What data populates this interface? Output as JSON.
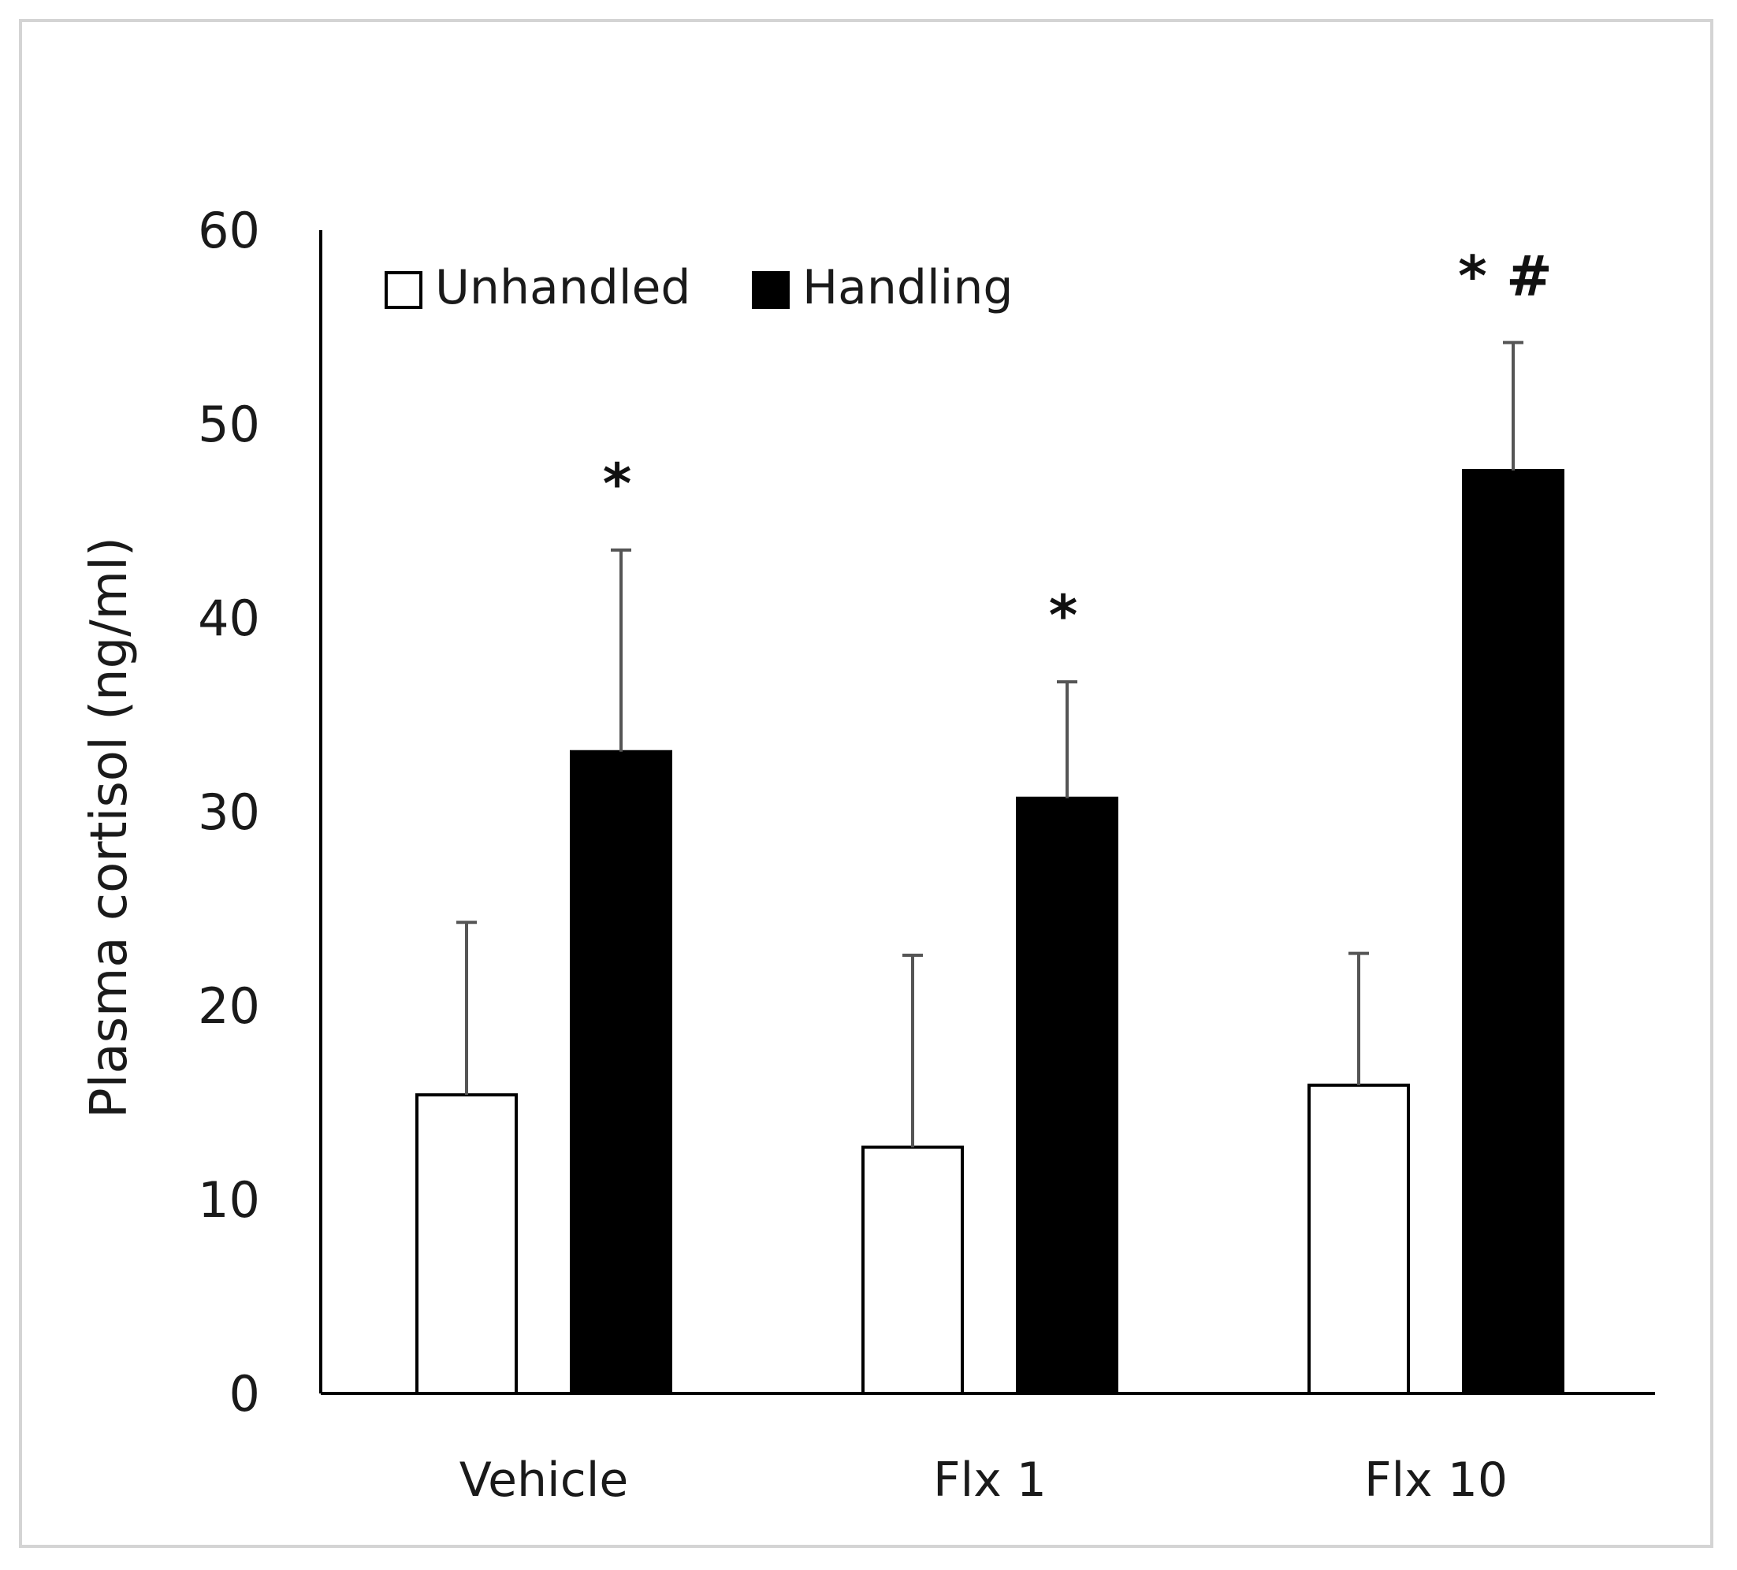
{
  "chart_data": {
    "type": "bar",
    "title": "",
    "xlabel": "",
    "ylabel": "Plasma cortisol (ng/ml)",
    "ylim": [
      0,
      60
    ],
    "yticks": [
      "0",
      "10",
      "20",
      "30",
      "40",
      "50",
      "60"
    ],
    "categories": [
      "Vehicle",
      "Flx 1",
      "Flx 10"
    ],
    "series": [
      {
        "name": "Unhandled",
        "values": [
          15.4,
          12.7,
          15.9
        ],
        "errors": [
          8.9,
          9.9,
          6.8
        ],
        "fill": "#ffffff",
        "stroke": "#000000"
      },
      {
        "name": "Handling",
        "values": [
          33.1,
          30.7,
          47.6
        ],
        "errors": [
          10.4,
          6.0,
          6.6
        ],
        "fill": "#000000",
        "stroke": "#000000"
      }
    ],
    "annotations": [
      {
        "category": "Vehicle",
        "series": "Handling",
        "text": "*"
      },
      {
        "category": "Flx 1",
        "series": "Handling",
        "text": "*"
      },
      {
        "category": "Flx 10",
        "series": "Handling",
        "text": "*  #"
      }
    ],
    "legend": {
      "placement": "top-left",
      "entries": [
        "Unhandled",
        "Handling"
      ]
    },
    "grid": false
  }
}
